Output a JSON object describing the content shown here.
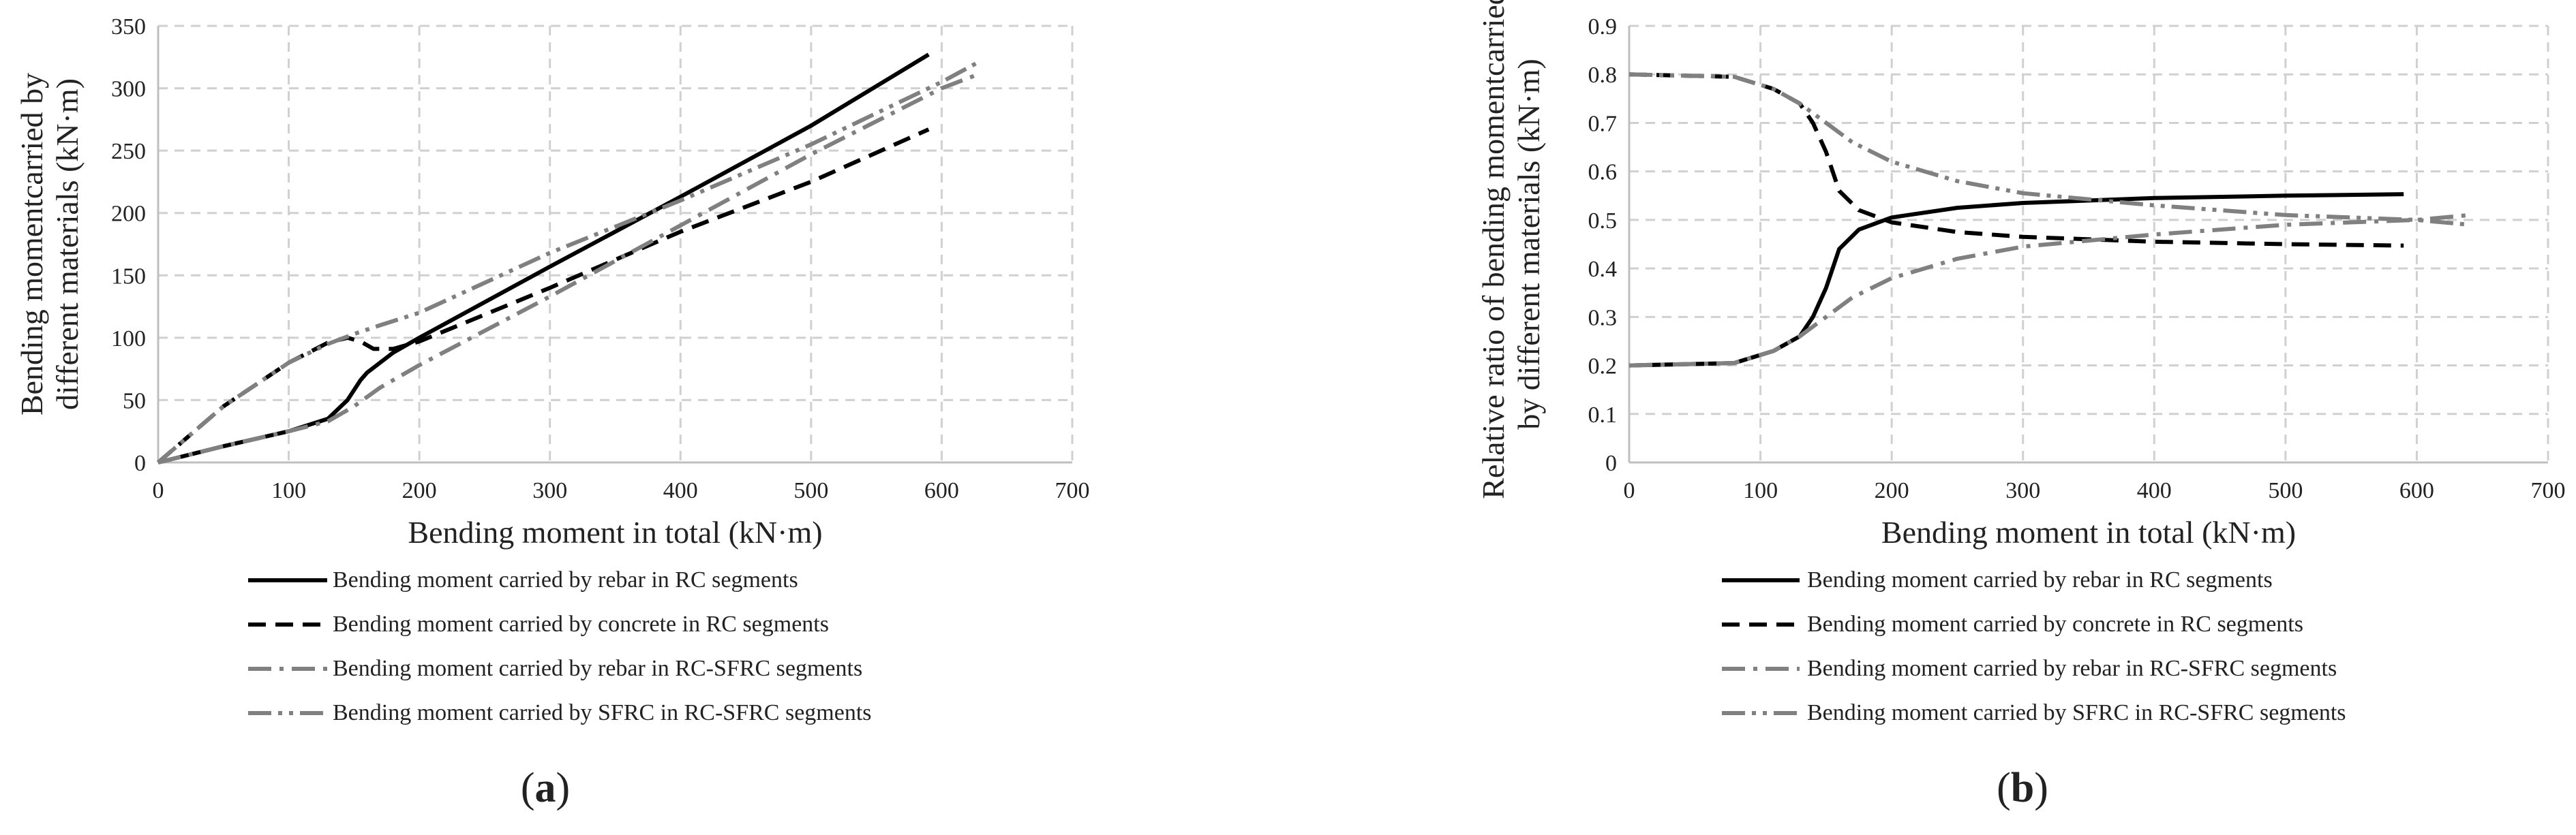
{
  "legend_items": [
    "Bending moment carried by rebar in RC segments",
    "Bending moment carried by concrete in RC segments",
    "Bending moment carried by rebar in RC-SFRC segments",
    "Bending moment carried by SFRC in RC-SFRC segments"
  ],
  "series_styles": [
    {
      "color": "#000000",
      "dash": "solid"
    },
    {
      "color": "#000000",
      "dash": "dash"
    },
    {
      "color": "#808080",
      "dash": "dashdot"
    },
    {
      "color": "#808080",
      "dash": "dashdotdot"
    }
  ],
  "chart_data": [
    {
      "type": "line",
      "panel_label": "a",
      "xlabel": "Bending moment in total (kN·m)",
      "ylabel": "Bending momentcarried by different materials (kN·m)",
      "xlim": [
        0,
        700
      ],
      "ylim": [
        0,
        350
      ],
      "xticks": [
        0,
        100,
        200,
        300,
        400,
        500,
        600,
        700
      ],
      "yticks": [
        0,
        50,
        100,
        150,
        200,
        250,
        300,
        350
      ],
      "ytick_labels": [
        "0",
        "50",
        "100",
        "150",
        "200",
        "250",
        "300",
        "350"
      ],
      "grid": true,
      "legend_position": "bottom",
      "series": [
        {
          "name": "Bending moment carried by rebar in RC segments",
          "x": [
            0,
            50,
            100,
            130,
            145,
            155,
            160,
            180,
            200,
            300,
            400,
            500,
            590
          ],
          "y": [
            0,
            13,
            25,
            35,
            50,
            66,
            72,
            88,
            100,
            157,
            213,
            270,
            327
          ]
        },
        {
          "name": "Bending moment carried by concrete in RC segments",
          "x": [
            0,
            50,
            100,
            130,
            145,
            155,
            165,
            180,
            200,
            300,
            400,
            500,
            590
          ],
          "y": [
            0,
            45,
            80,
            96,
            100,
            97,
            91,
            91,
            97,
            140,
            185,
            225,
            267
          ]
        },
        {
          "name": "Bending moment carried by rebar in RC-SFRC segments",
          "x": [
            0,
            50,
            100,
            130,
            150,
            170,
            200,
            300,
            400,
            500,
            600,
            630
          ],
          "y": [
            0,
            13,
            25,
            33,
            45,
            60,
            78,
            133,
            190,
            247,
            300,
            312
          ]
        },
        {
          "name": "Bending moment carried by SFRC in RC-SFRC segments",
          "x": [
            0,
            50,
            100,
            130,
            150,
            170,
            200,
            300,
            400,
            500,
            600,
            630
          ],
          "y": [
            0,
            45,
            80,
            95,
            103,
            110,
            120,
            168,
            210,
            255,
            305,
            322
          ]
        }
      ]
    },
    {
      "type": "line",
      "panel_label": "b",
      "xlabel": "Bending moment in total (kN·m)",
      "ylabel": "Relative ratio of bending momentcarried by different materials (kN·m)",
      "xlim": [
        0,
        700
      ],
      "ylim": [
        0,
        0.9
      ],
      "xticks": [
        0,
        100,
        200,
        300,
        400,
        500,
        600,
        700
      ],
      "yticks": [
        0,
        0.1,
        0.2,
        0.3,
        0.4,
        0.5,
        0.6,
        0.7,
        0.8,
        0.9
      ],
      "ytick_labels": [
        "0",
        "0.1",
        "0.2",
        "0.3",
        "0.4",
        "0.5",
        "0.6",
        "0.7",
        "0.8",
        "0.9"
      ],
      "grid": true,
      "legend_position": "bottom",
      "series": [
        {
          "name": "Bending moment carried by rebar in RC segments",
          "x": [
            0,
            80,
            110,
            130,
            140,
            150,
            160,
            175,
            200,
            250,
            300,
            400,
            500,
            590
          ],
          "y": [
            0.2,
            0.205,
            0.23,
            0.26,
            0.3,
            0.36,
            0.44,
            0.48,
            0.505,
            0.525,
            0.535,
            0.545,
            0.55,
            0.553
          ]
        },
        {
          "name": "Bending moment carried by concrete in RC segments",
          "x": [
            0,
            80,
            110,
            130,
            140,
            150,
            160,
            175,
            200,
            250,
            300,
            400,
            500,
            590
          ],
          "y": [
            0.8,
            0.795,
            0.77,
            0.74,
            0.7,
            0.64,
            0.56,
            0.52,
            0.495,
            0.475,
            0.465,
            0.455,
            0.45,
            0.447
          ]
        },
        {
          "name": "Bending moment carried by rebar in RC-SFRC segments",
          "x": [
            0,
            80,
            110,
            130,
            150,
            170,
            200,
            250,
            300,
            400,
            500,
            600,
            640
          ],
          "y": [
            0.2,
            0.205,
            0.23,
            0.26,
            0.3,
            0.34,
            0.38,
            0.42,
            0.445,
            0.47,
            0.49,
            0.5,
            0.51
          ]
        },
        {
          "name": "Bending moment carried by SFRC in RC-SFRC segments",
          "x": [
            0,
            80,
            110,
            130,
            150,
            170,
            200,
            250,
            300,
            400,
            500,
            600,
            640
          ],
          "y": [
            0.8,
            0.795,
            0.77,
            0.74,
            0.7,
            0.66,
            0.62,
            0.58,
            0.555,
            0.53,
            0.51,
            0.5,
            0.49
          ]
        }
      ]
    }
  ]
}
